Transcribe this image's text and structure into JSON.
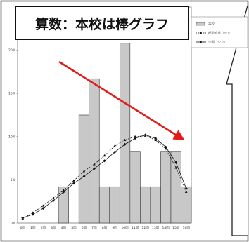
{
  "title": "算数：本校は棒グラフ",
  "chart_data": {
    "type": "bar",
    "title": "算数：本校は棒グラフ",
    "xlabel": "",
    "ylabel": "",
    "categories": [
      "0問",
      "1問",
      "2問",
      "3問",
      "4問",
      "5問",
      "6問",
      "7問",
      "8問",
      "9問",
      "10問",
      "11問",
      "12問",
      "13問",
      "14問",
      "15問",
      "16問"
    ],
    "ylim": [
      0,
      25
    ],
    "yticks": [
      "0%",
      "5%",
      "10%",
      "15%",
      "20%"
    ],
    "series": [
      {
        "name": "本校",
        "kind": "bar",
        "values": [
          0,
          0,
          0,
          0,
          4.2,
          0,
          12.5,
          16.7,
          4.2,
          4.2,
          20.8,
          8.3,
          4.2,
          4.2,
          8.3,
          8.3,
          4.2
        ]
      },
      {
        "name": "都道府県（公立）",
        "kind": "line",
        "values": [
          0.5,
          1.2,
          2.0,
          2.9,
          3.8,
          4.9,
          6.0,
          6.8,
          7.8,
          8.9,
          9.6,
          10.0,
          10.1,
          9.6,
          8.6,
          6.4,
          3.6
        ]
      },
      {
        "name": "全国（公立）",
        "kind": "line",
        "values": [
          0.6,
          1.0,
          1.7,
          2.6,
          3.6,
          4.6,
          5.4,
          6.3,
          7.2,
          8.2,
          9.1,
          9.8,
          10.2,
          9.8,
          8.8,
          7.0,
          4.0
        ]
      }
    ],
    "grid": false,
    "legend": "top-right",
    "annotations": [
      "red downward trend arrow",
      "speech bubble"
    ]
  },
  "colors": {
    "bar_fill": "#c8c8c8",
    "arrow": "#e21a1a"
  }
}
